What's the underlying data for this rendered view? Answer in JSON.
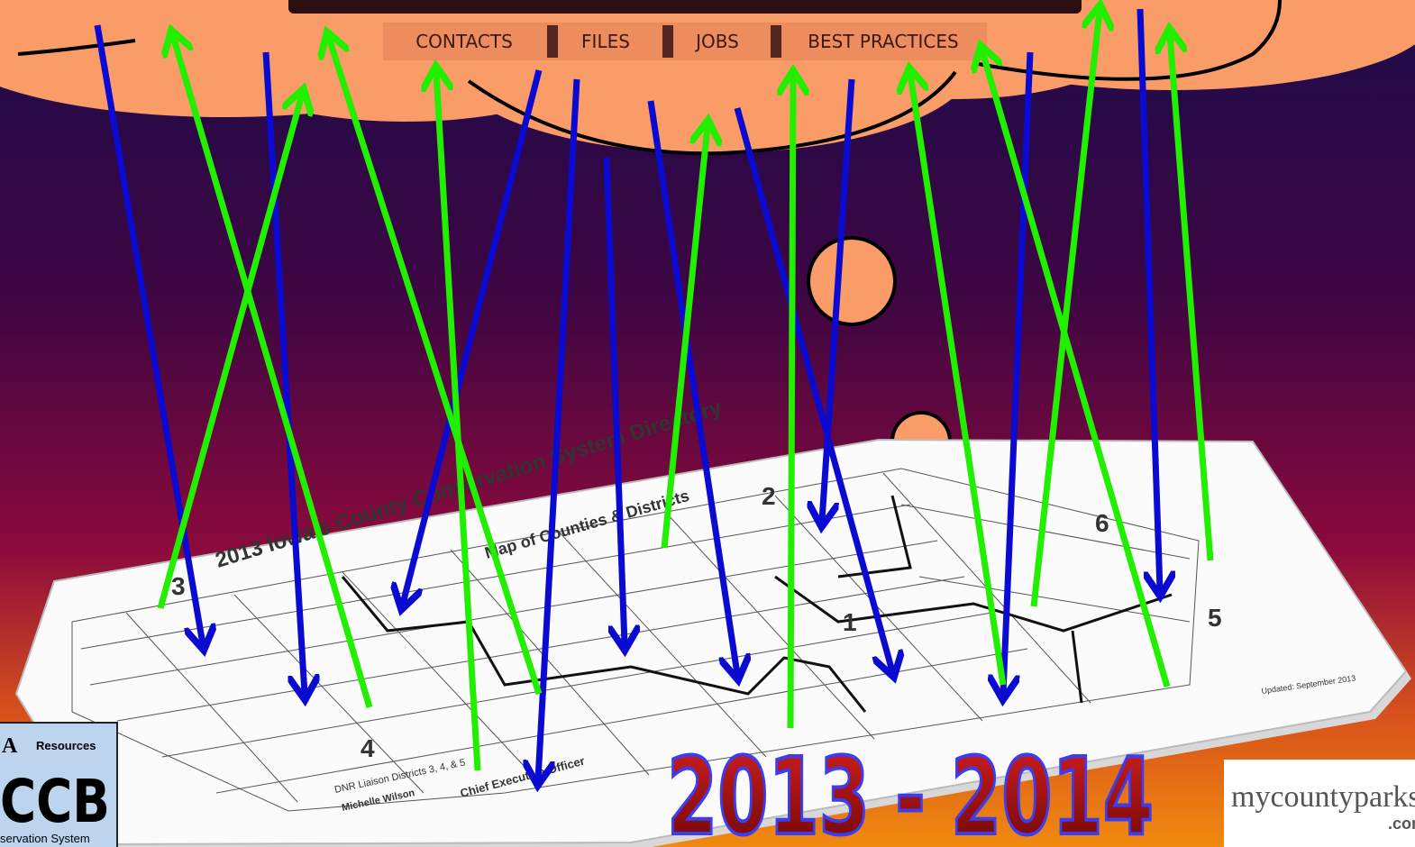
{
  "nav": {
    "items": [
      "CONTACTS",
      "FILES",
      "JOBS",
      "BEST PRACTICES"
    ]
  },
  "map": {
    "title": "2013 Iowa's County Conservation System Directory",
    "subtitle": "Map of Counties & Districts",
    "districts": [
      "1",
      "2",
      "3",
      "4",
      "5",
      "6"
    ],
    "footer_left": "Chief Executive Officer",
    "liaison": "DNR Liaison Districts 3, 4, & 5",
    "liaison_name": "Michelle Wilson",
    "updated": "Updated: September 2013"
  },
  "headline": "2013 - 2014",
  "logo": {
    "letter": "A",
    "resources": "Resources",
    "name": "CCB",
    "system": "servation System"
  },
  "sponsor": {
    "name": "mycountyparks",
    "suffix": ".com"
  }
}
